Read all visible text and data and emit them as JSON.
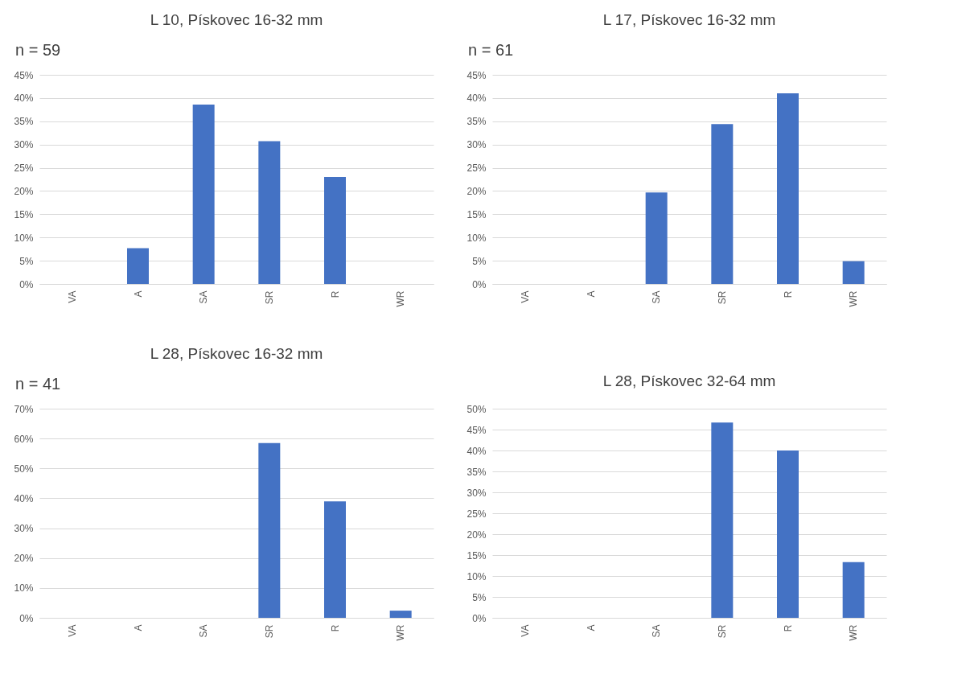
{
  "chart_data": [
    {
      "type": "bar",
      "title": "L 10, Pískovec 16-32 mm",
      "annotations": [
        "n = 59"
      ],
      "categories": [
        "VA",
        "A",
        "SA",
        "SR",
        "R",
        "WR"
      ],
      "values": [
        0,
        7.7,
        38.6,
        30.7,
        23.0,
        0
      ],
      "color": "#4472c4",
      "ylim": [
        0,
        45
      ],
      "yticks": [
        {
          "value": 0,
          "label": "0%"
        },
        {
          "value": 5,
          "label": "5%"
        },
        {
          "value": 10,
          "label": "10%"
        },
        {
          "value": 15,
          "label": "15%"
        },
        {
          "value": 20,
          "label": "20%"
        },
        {
          "value": 25,
          "label": "25%"
        },
        {
          "value": 30,
          "label": "30%"
        },
        {
          "value": 35,
          "label": "35%"
        },
        {
          "value": 40,
          "label": "40%"
        },
        {
          "value": 45,
          "label": "45%"
        }
      ],
      "grid": "y"
    },
    {
      "type": "bar",
      "title": "L 17, Pískovec 16-32 mm",
      "annotations": [
        "n = 61"
      ],
      "categories": [
        "VA",
        "A",
        "SA",
        "SR",
        "R",
        "WR"
      ],
      "values": [
        0,
        0,
        19.7,
        34.4,
        41.0,
        4.9
      ],
      "color": "#4472c4",
      "ylim": [
        0,
        45
      ],
      "yticks": [
        {
          "value": 0,
          "label": "0%"
        },
        {
          "value": 5,
          "label": "5%"
        },
        {
          "value": 10,
          "label": "10%"
        },
        {
          "value": 15,
          "label": "15%"
        },
        {
          "value": 20,
          "label": "20%"
        },
        {
          "value": 25,
          "label": "25%"
        },
        {
          "value": 30,
          "label": "30%"
        },
        {
          "value": 35,
          "label": "35%"
        },
        {
          "value": 40,
          "label": "40%"
        },
        {
          "value": 45,
          "label": "45%"
        }
      ],
      "grid": "y"
    },
    {
      "type": "bar",
      "title": "L 28, Pískovec 16-32 mm",
      "annotations": [
        "n = 41"
      ],
      "categories": [
        "VA",
        "A",
        "SA",
        "SR",
        "R",
        "WR"
      ],
      "values": [
        0,
        0,
        0,
        58.5,
        39.0,
        2.4
      ],
      "color": "#4472c4",
      "ylim": [
        0,
        70
      ],
      "yticks": [
        {
          "value": 0,
          "label": "0%"
        },
        {
          "value": 10,
          "label": "10%"
        },
        {
          "value": 20,
          "label": "20%"
        },
        {
          "value": 30,
          "label": "30%"
        },
        {
          "value": 40,
          "label": "40%"
        },
        {
          "value": 50,
          "label": "50%"
        },
        {
          "value": 60,
          "label": "60%"
        },
        {
          "value": 70,
          "label": "70%"
        }
      ],
      "grid": "y"
    },
    {
      "type": "bar",
      "title": "L 28, Pískovec 32-64 mm",
      "categories": [
        "VA",
        "A",
        "SA",
        "SR",
        "R",
        "WR"
      ],
      "values": [
        0,
        0,
        0,
        46.7,
        40.0,
        13.3
      ],
      "color": "#4472c4",
      "ylim": [
        0,
        50
      ],
      "yticks": [
        {
          "value": 0,
          "label": "0%"
        },
        {
          "value": 5,
          "label": "5%"
        },
        {
          "value": 10,
          "label": "10%"
        },
        {
          "value": 15,
          "label": "15%"
        },
        {
          "value": 20,
          "label": "20%"
        },
        {
          "value": 25,
          "label": "25%"
        },
        {
          "value": 30,
          "label": "30%"
        },
        {
          "value": 35,
          "label": "35%"
        },
        {
          "value": 40,
          "label": "40%"
        },
        {
          "value": 45,
          "label": "45%"
        },
        {
          "value": 50,
          "label": "50%"
        }
      ],
      "grid": "y"
    }
  ]
}
